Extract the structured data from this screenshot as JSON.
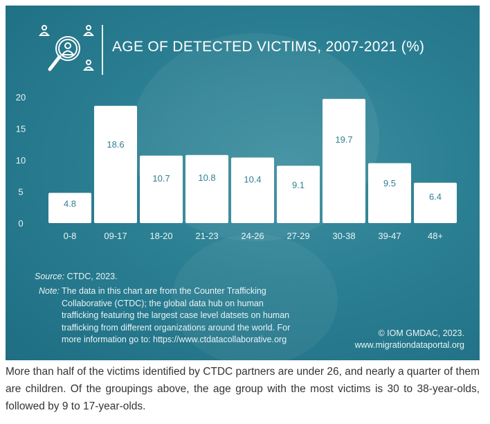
{
  "header": {
    "title": "AGE OF DETECTED VICTIMS, 2007-2021 (%)",
    "icon": "person-search-icon"
  },
  "chart_data": {
    "type": "bar",
    "title": "AGE OF DETECTED VICTIMS, 2007-2021 (%)",
    "categories": [
      "0-8",
      "09-17",
      "18-20",
      "21-23",
      "24-26",
      "27-29",
      "30-38",
      "39-47",
      "48+"
    ],
    "values": [
      4.8,
      18.6,
      10.7,
      10.8,
      10.4,
      9.1,
      19.7,
      9.5,
      6.4
    ],
    "value_labels": [
      "4.8",
      "18.6",
      "10.7",
      "10.8",
      "10.4",
      "9.1",
      "19.7",
      "9.5",
      "6.4"
    ],
    "ylim": [
      0,
      20
    ],
    "yticks": [
      "0",
      "5",
      "10",
      "15",
      "20"
    ],
    "xlabel": "",
    "ylabel": "",
    "grid": false,
    "bar_color": "#ffffff",
    "label_color": "#2f7f93"
  },
  "footer": {
    "source_label": "Source:",
    "source_text": " CTDC, 2023.",
    "note_label": "Note:",
    "note_text": "The data in this chart are from the Counter Trafficking Collaborative (CTDC); the global data hub on human trafficking featuring the largest case level datsets on human trafficking from different organizations around the world. For more information go to: https://www.ctdatacollaborative.org",
    "credit_line1": "© IOM GMDAC, 2023.",
    "credit_line2": "www.migrationdataportal.org"
  },
  "caption": "More than half of the victims identified by CTDC partners are under 26, and nearly a quarter of them are children. Of the groupings above, the age group with the most victims is 30 to 38-year-olds, followed by 9 to 17-year-olds."
}
